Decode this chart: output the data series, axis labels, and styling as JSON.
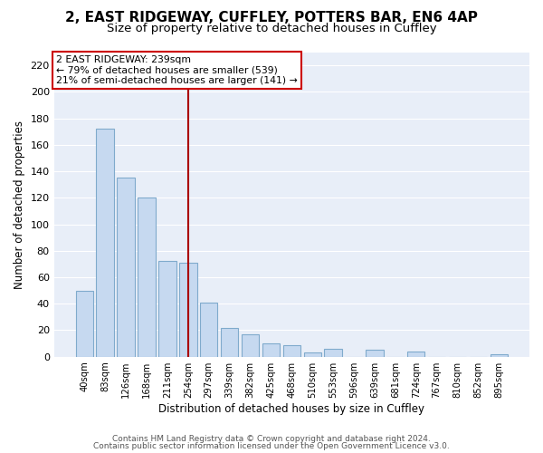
{
  "title1": "2, EAST RIDGEWAY, CUFFLEY, POTTERS BAR, EN6 4AP",
  "title2": "Size of property relative to detached houses in Cuffley",
  "xlabel": "Distribution of detached houses by size in Cuffley",
  "ylabel": "Number of detached properties",
  "bar_labels": [
    "40sqm",
    "83sqm",
    "126sqm",
    "168sqm",
    "211sqm",
    "254sqm",
    "297sqm",
    "339sqm",
    "382sqm",
    "425sqm",
    "468sqm",
    "510sqm",
    "553sqm",
    "596sqm",
    "639sqm",
    "681sqm",
    "724sqm",
    "767sqm",
    "810sqm",
    "852sqm",
    "895sqm"
  ],
  "bar_values": [
    50,
    172,
    135,
    120,
    72,
    71,
    41,
    22,
    17,
    10,
    9,
    3,
    6,
    0,
    5,
    0,
    4,
    0,
    0,
    0,
    2
  ],
  "bar_color": "#c6d9f0",
  "bar_edge_color": "#7faacc",
  "vline_x_index": 5,
  "vline_color": "#aa0000",
  "annotation_line1": "2 EAST RIDGEWAY: 239sqm",
  "annotation_line2": "← 79% of detached houses are smaller (539)",
  "annotation_line3": "21% of semi-detached houses are larger (141) →",
  "annotation_box_color": "#ffffff",
  "annotation_box_edge": "#cc0000",
  "ylim": [
    0,
    230
  ],
  "yticks": [
    0,
    20,
    40,
    60,
    80,
    100,
    120,
    140,
    160,
    180,
    200,
    220
  ],
  "footer1": "Contains HM Land Registry data © Crown copyright and database right 2024.",
  "footer2": "Contains public sector information licensed under the Open Government Licence v3.0.",
  "fig_bg_color": "#ffffff",
  "ax_bg_color": "#e8eef8",
  "grid_color": "#ffffff",
  "title1_fontsize": 11,
  "title2_fontsize": 9.5
}
